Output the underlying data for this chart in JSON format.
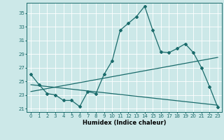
{
  "xlabel": "Humidex (Indice chaleur)",
  "bg_color": "#cce8e8",
  "line_color": "#1a6b6b",
  "grid_color": "#ffffff",
  "xlim": [
    -0.5,
    23.5
  ],
  "ylim": [
    20.5,
    36.5
  ],
  "yticks": [
    21,
    23,
    25,
    27,
    29,
    31,
    33,
    35
  ],
  "xticks": [
    0,
    1,
    2,
    3,
    4,
    5,
    6,
    7,
    8,
    9,
    10,
    11,
    12,
    13,
    14,
    15,
    16,
    17,
    18,
    19,
    20,
    21,
    22,
    23
  ],
  "line1_x": [
    0,
    1,
    2,
    3,
    4,
    5,
    6,
    7,
    8,
    9,
    10,
    11,
    12,
    13,
    14,
    15,
    16,
    17,
    18,
    19,
    20,
    21,
    22,
    23
  ],
  "line1_y": [
    26.0,
    24.5,
    23.2,
    23.0,
    22.2,
    22.2,
    21.3,
    23.5,
    23.2,
    26.0,
    28.0,
    32.5,
    33.5,
    34.5,
    36.0,
    32.5,
    29.3,
    29.2,
    29.8,
    30.5,
    29.2,
    27.0,
    24.2,
    21.2
  ],
  "line2_x": [
    0,
    23
  ],
  "line2_y": [
    23.5,
    28.5
  ],
  "line3_x": [
    0,
    23
  ],
  "line3_y": [
    24.5,
    21.5
  ],
  "marker": "D",
  "markersize": 2,
  "linewidth": 0.9,
  "tick_fontsize": 5,
  "xlabel_fontsize": 6
}
